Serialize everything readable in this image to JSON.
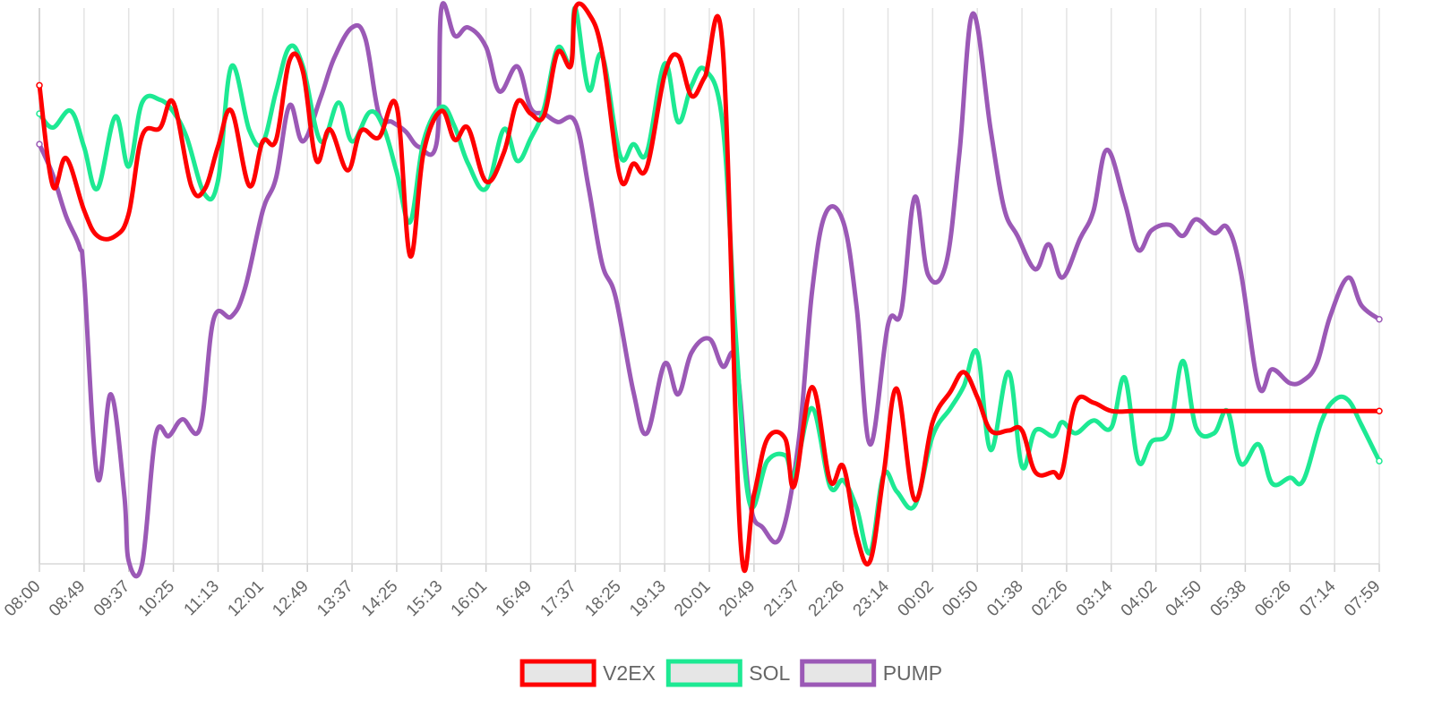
{
  "chart_data": {
    "type": "line",
    "title": "",
    "xlabel": "",
    "ylabel": "",
    "ylim": [
      0,
      100
    ],
    "grid": "vertical",
    "legend_position": "bottom",
    "x_ticks": [
      "08:00",
      "08:49",
      "09:37",
      "10:25",
      "11:13",
      "12:01",
      "12:49",
      "13:37",
      "14:25",
      "15:13",
      "16:01",
      "16:49",
      "17:37",
      "18:25",
      "19:13",
      "20:01",
      "20:49",
      "21:37",
      "22:26",
      "23:14",
      "00:02",
      "00:50",
      "01:38",
      "02:26",
      "03:14",
      "04:02",
      "04:50",
      "05:38",
      "06:26",
      "07:14",
      "07:59"
    ],
    "series": [
      {
        "name": "V2EX",
        "color": "#ff0000",
        "points": [
          [
            0,
            86.1
          ],
          [
            0.3,
            68
          ],
          [
            0.6,
            73
          ],
          [
            1.0,
            63.6
          ],
          [
            1.3,
            59
          ],
          [
            1.7,
            59
          ],
          [
            2.0,
            63
          ],
          [
            2.3,
            77
          ],
          [
            2.7,
            78.4
          ],
          [
            3.0,
            83
          ],
          [
            3.4,
            68
          ],
          [
            3.7,
            67.4
          ],
          [
            4.0,
            75.1
          ],
          [
            4.3,
            81.5
          ],
          [
            4.7,
            68
          ],
          [
            5.0,
            76
          ],
          [
            5.3,
            76.3
          ],
          [
            5.6,
            90.6
          ],
          [
            5.9,
            88.6
          ],
          [
            6.2,
            72.6
          ],
          [
            6.5,
            78.2
          ],
          [
            6.9,
            70.8
          ],
          [
            7.2,
            77.9
          ],
          [
            7.6,
            76.7
          ],
          [
            8.0,
            82.3
          ],
          [
            8.3,
            55.4
          ],
          [
            8.6,
            74
          ],
          [
            9.0,
            81.5
          ],
          [
            9.3,
            76.3
          ],
          [
            9.6,
            78.4
          ],
          [
            10.0,
            68.8
          ],
          [
            10.4,
            74
          ],
          [
            10.7,
            83.1
          ],
          [
            11.0,
            81
          ],
          [
            11.3,
            80.7
          ],
          [
            11.6,
            92
          ],
          [
            11.9,
            89.6
          ],
          [
            12.0,
            100
          ],
          [
            12.3,
            99
          ],
          [
            12.6,
            92
          ],
          [
            13.0,
            69.5
          ],
          [
            13.3,
            72
          ],
          [
            13.6,
            71.3
          ],
          [
            14.0,
            88
          ],
          [
            14.3,
            91.4
          ],
          [
            14.6,
            84.2
          ],
          [
            14.9,
            87.6
          ],
          [
            15.3,
            92.7
          ],
          [
            15.7,
            4
          ],
          [
            16.0,
            12.5
          ],
          [
            16.3,
            22.5
          ],
          [
            16.7,
            22.5
          ],
          [
            16.9,
            14
          ],
          [
            17.3,
            31.8
          ],
          [
            17.7,
            15
          ],
          [
            18.0,
            17.5
          ],
          [
            18.3,
            5
          ],
          [
            18.6,
            0.5
          ],
          [
            18.9,
            16
          ],
          [
            19.2,
            31.5
          ],
          [
            19.6,
            11.5
          ],
          [
            20.0,
            25.5
          ],
          [
            20.4,
            31
          ],
          [
            20.7,
            34.5
          ],
          [
            21.0,
            30
          ],
          [
            21.3,
            24
          ],
          [
            21.7,
            24
          ],
          [
            22.0,
            24
          ],
          [
            22.3,
            16.5
          ],
          [
            22.7,
            16.5
          ],
          [
            22.9,
            16.5
          ],
          [
            23.2,
            29
          ],
          [
            23.6,
            29
          ],
          [
            24.0,
            27.5
          ],
          [
            24.5,
            27.5
          ],
          [
            25.0,
            27.5
          ],
          [
            25.5,
            27.5
          ],
          [
            26.0,
            27.5
          ],
          [
            26.5,
            27.5
          ],
          [
            27.0,
            27.5
          ],
          [
            27.5,
            27.5
          ],
          [
            28.0,
            27.5
          ],
          [
            28.5,
            27.5
          ],
          [
            29.0,
            27.5
          ],
          [
            29.5,
            27.5
          ],
          [
            30.0,
            27.5
          ]
        ]
      },
      {
        "name": "SOL",
        "color": "#1de993",
        "points": [
          [
            0,
            81
          ],
          [
            0.3,
            78.5
          ],
          [
            0.7,
            81.5
          ],
          [
            1.0,
            75
          ],
          [
            1.3,
            67.5
          ],
          [
            1.7,
            80.5
          ],
          [
            2.0,
            71.5
          ],
          [
            2.3,
            83
          ],
          [
            2.7,
            83.5
          ],
          [
            3.0,
            81.3
          ],
          [
            3.3,
            76.7
          ],
          [
            3.7,
            66.5
          ],
          [
            4.0,
            69
          ],
          [
            4.3,
            89.5
          ],
          [
            4.7,
            78
          ],
          [
            5.0,
            75.8
          ],
          [
            5.3,
            85
          ],
          [
            5.6,
            93
          ],
          [
            5.9,
            89.5
          ],
          [
            6.3,
            76
          ],
          [
            6.7,
            83
          ],
          [
            7.0,
            76
          ],
          [
            7.4,
            81.3
          ],
          [
            7.7,
            78.6
          ],
          [
            8.0,
            70.5
          ],
          [
            8.3,
            61.5
          ],
          [
            8.6,
            76
          ],
          [
            9.0,
            82.2
          ],
          [
            9.3,
            78.6
          ],
          [
            9.6,
            72
          ],
          [
            10.0,
            67.5
          ],
          [
            10.4,
            78.2
          ],
          [
            10.7,
            72.5
          ],
          [
            11.0,
            76.5
          ],
          [
            11.3,
            82
          ],
          [
            11.6,
            92.8
          ],
          [
            11.9,
            90
          ],
          [
            12.0,
            100
          ],
          [
            12.3,
            85.3
          ],
          [
            12.6,
            91.5
          ],
          [
            13.0,
            73.5
          ],
          [
            13.3,
            75.5
          ],
          [
            13.6,
            74
          ],
          [
            14.0,
            90
          ],
          [
            14.3,
            79.5
          ],
          [
            14.6,
            86
          ],
          [
            14.9,
            88.9
          ],
          [
            15.3,
            79
          ],
          [
            15.6,
            40
          ],
          [
            15.9,
            11
          ],
          [
            16.3,
            18.5
          ],
          [
            16.7,
            19.5
          ],
          [
            16.9,
            16
          ],
          [
            17.3,
            28
          ],
          [
            17.7,
            14
          ],
          [
            18.0,
            15
          ],
          [
            18.3,
            10
          ],
          [
            18.6,
            2
          ],
          [
            18.9,
            16
          ],
          [
            19.2,
            13
          ],
          [
            19.6,
            10.5
          ],
          [
            20.0,
            23
          ],
          [
            20.4,
            28
          ],
          [
            20.7,
            32
          ],
          [
            21.0,
            38
          ],
          [
            21.3,
            20.5
          ],
          [
            21.7,
            34.5
          ],
          [
            22.0,
            17.5
          ],
          [
            22.3,
            24
          ],
          [
            22.7,
            23
          ],
          [
            22.9,
            25.5
          ],
          [
            23.2,
            23.5
          ],
          [
            23.6,
            25.8
          ],
          [
            24.0,
            24.5
          ],
          [
            24.3,
            33.5
          ],
          [
            24.6,
            18.5
          ],
          [
            24.9,
            22
          ],
          [
            25.3,
            24
          ],
          [
            25.6,
            36.5
          ],
          [
            25.9,
            24.5
          ],
          [
            26.3,
            23.5
          ],
          [
            26.6,
            27.5
          ],
          [
            26.9,
            18
          ],
          [
            27.3,
            21.5
          ],
          [
            27.6,
            14.5
          ],
          [
            28.0,
            15.5
          ],
          [
            28.3,
            15
          ],
          [
            28.7,
            25.5
          ],
          [
            29.0,
            29.5
          ],
          [
            29.3,
            29.5
          ],
          [
            29.6,
            25
          ],
          [
            30.0,
            18.5
          ]
        ]
      },
      {
        "name": "PUMP",
        "color": "#9b59b6",
        "points": [
          [
            0,
            75.5
          ],
          [
            0.3,
            70
          ],
          [
            0.6,
            62.5
          ],
          [
            0.9,
            57
          ],
          [
            1.0,
            51.5
          ],
          [
            1.3,
            15.5
          ],
          [
            1.6,
            30.5
          ],
          [
            1.9,
            12.5
          ],
          [
            2.0,
            0.5
          ],
          [
            2.3,
            0
          ],
          [
            2.6,
            23
          ],
          [
            2.9,
            23
          ],
          [
            3.2,
            26
          ],
          [
            3.6,
            24.5
          ],
          [
            3.9,
            44
          ],
          [
            4.3,
            44.5
          ],
          [
            4.6,
            49.5
          ],
          [
            5.0,
            63.5
          ],
          [
            5.3,
            69.5
          ],
          [
            5.6,
            82.5
          ],
          [
            5.9,
            76
          ],
          [
            6.3,
            84
          ],
          [
            6.6,
            91
          ],
          [
            7.0,
            96.5
          ],
          [
            7.3,
            94.5
          ],
          [
            7.6,
            81
          ],
          [
            7.9,
            79.5
          ],
          [
            8.2,
            77.8
          ],
          [
            8.5,
            75
          ],
          [
            8.9,
            76
          ],
          [
            9.0,
            100
          ],
          [
            9.3,
            95
          ],
          [
            9.6,
            96.5
          ],
          [
            10.0,
            93
          ],
          [
            10.3,
            85
          ],
          [
            10.7,
            89.5
          ],
          [
            11.0,
            82
          ],
          [
            11.3,
            81
          ],
          [
            11.6,
            79.5
          ],
          [
            12.0,
            79.5
          ],
          [
            12.3,
            67.5
          ],
          [
            12.6,
            54
          ],
          [
            12.9,
            48
          ],
          [
            13.3,
            31
          ],
          [
            13.6,
            23.5
          ],
          [
            14.0,
            36
          ],
          [
            14.3,
            30.5
          ],
          [
            14.6,
            38
          ],
          [
            15.0,
            40.5
          ],
          [
            15.3,
            35.5
          ],
          [
            15.6,
            36.5
          ],
          [
            15.9,
            11.5
          ],
          [
            16.2,
            6.5
          ],
          [
            16.6,
            5
          ],
          [
            17.0,
            22
          ],
          [
            17.3,
            49
          ],
          [
            17.6,
            63
          ],
          [
            18.0,
            61.5
          ],
          [
            18.3,
            46
          ],
          [
            18.6,
            21.5
          ],
          [
            19.0,
            43
          ],
          [
            19.3,
            45.5
          ],
          [
            19.6,
            66
          ],
          [
            19.9,
            52
          ],
          [
            20.3,
            54
          ],
          [
            20.6,
            74
          ],
          [
            20.9,
            99
          ],
          [
            21.3,
            78
          ],
          [
            21.6,
            64
          ],
          [
            21.9,
            59
          ],
          [
            22.3,
            53
          ],
          [
            22.6,
            57.5
          ],
          [
            22.9,
            51.5
          ],
          [
            23.3,
            58.5
          ],
          [
            23.6,
            63.5
          ],
          [
            23.9,
            74.5
          ],
          [
            24.3,
            65
          ],
          [
            24.6,
            56.5
          ],
          [
            24.9,
            60
          ],
          [
            25.3,
            61
          ],
          [
            25.6,
            59
          ],
          [
            25.9,
            62
          ],
          [
            26.3,
            59.5
          ],
          [
            26.6,
            60.5
          ],
          [
            26.9,
            52.5
          ],
          [
            27.3,
            32
          ],
          [
            27.6,
            35
          ],
          [
            28.0,
            32.5
          ],
          [
            28.3,
            33
          ],
          [
            28.6,
            36
          ],
          [
            28.9,
            44.5
          ],
          [
            29.3,
            51.5
          ],
          [
            29.6,
            46.5
          ],
          [
            30.0,
            44
          ]
        ]
      }
    ]
  }
}
